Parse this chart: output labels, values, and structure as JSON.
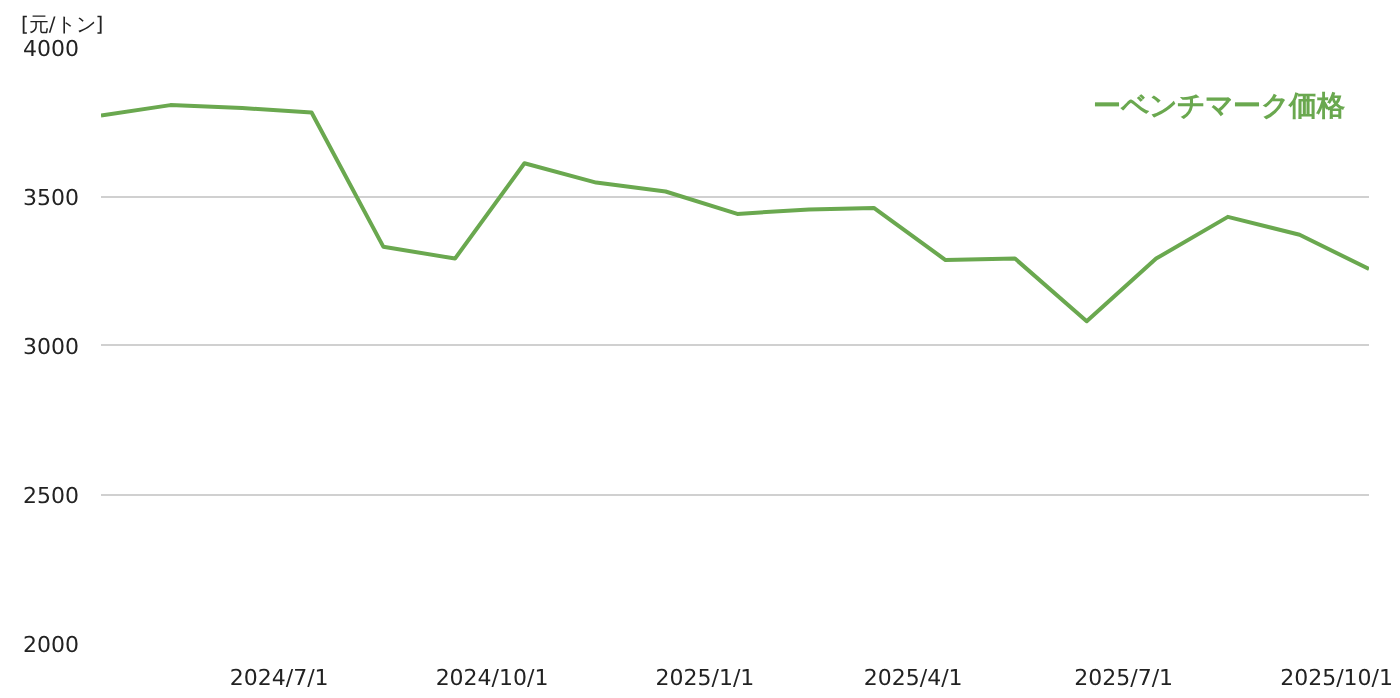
{
  "chart_data": {
    "type": "line",
    "ylabel": "[元/トン]",
    "x": [
      "2024-04-15",
      "2024-05-15",
      "2024-06-15",
      "2024-07-15",
      "2024-08-15",
      "2024-09-15",
      "2024-10-15",
      "2024-11-15",
      "2024-12-15",
      "2025-01-15",
      "2025-02-15",
      "2025-03-15",
      "2025-04-15",
      "2025-05-15",
      "2025-06-15",
      "2025-07-15",
      "2025-08-15",
      "2025-09-15",
      "2025-10-15"
    ],
    "series": [
      {
        "name": "ーベンチマーク価格",
        "color": "#6aa84f",
        "values": [
          3770,
          3805,
          3795,
          3780,
          3330,
          3290,
          3610,
          3545,
          3515,
          3440,
          3455,
          3460,
          3285,
          3290,
          3080,
          3290,
          3430,
          3370,
          3255
        ]
      }
    ],
    "xlim": [
      "2024-04-15",
      "2025-10-15"
    ],
    "xticks": [
      {
        "value": "2024-07-01",
        "label": "2024/7/1"
      },
      {
        "value": "2024-10-01",
        "label": "2024/10/1"
      },
      {
        "value": "2025-01-01",
        "label": "2025/1/1"
      },
      {
        "value": "2025-04-01",
        "label": "2025/4/1"
      },
      {
        "value": "2025-07-01",
        "label": "2025/7/1"
      },
      {
        "value": "2025-10-01",
        "label": "2025/10/1"
      }
    ],
    "ylim": [
      2000,
      4000
    ],
    "yticks": [
      2000,
      2500,
      3000,
      3500,
      4000
    ],
    "grid": "y",
    "legend": "top right",
    "marker": "none",
    "line_style": "solid"
  }
}
